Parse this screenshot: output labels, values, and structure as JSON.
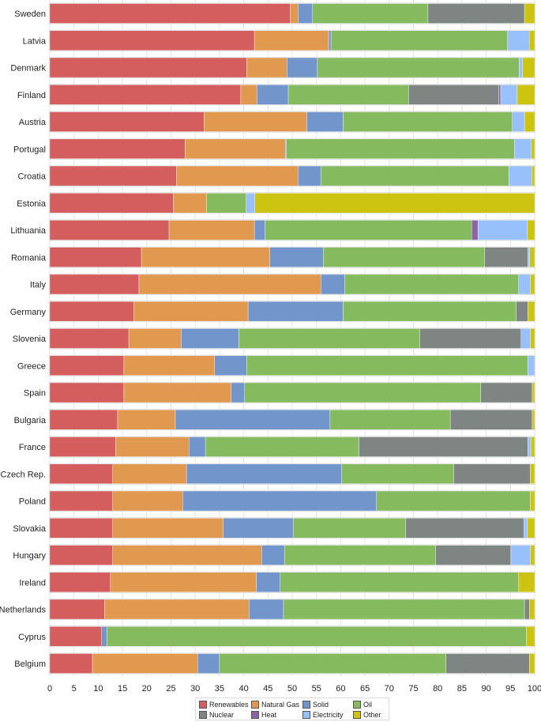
{
  "chart_data": {
    "type": "bar",
    "orientation": "horizontal",
    "stacked": true,
    "title": "",
    "xlabel": "",
    "ylabel": "",
    "xlim": [
      0,
      100
    ],
    "xticks": [
      "0",
      "5",
      "10",
      "15",
      "20",
      "25",
      "30",
      "35",
      "40",
      "45",
      "50",
      "55",
      "60",
      "65",
      "70",
      "75",
      "80",
      "85",
      "90",
      "95",
      "100"
    ],
    "grid": true,
    "legend_position": "bottom",
    "categories": [
      "Sweden",
      "Latvia",
      "Denmark",
      "Finland",
      "Austria",
      "Portugal",
      "Croatia",
      "Estonia",
      "Lithuania",
      "Romania",
      "Italy",
      "Germany",
      "Slovenia",
      "Greece",
      "Spain",
      "Bulgaria",
      "France",
      "Czech Rep.",
      "Poland",
      "Slovakia",
      "Hungary",
      "Ireland",
      "Netherlands",
      "Cyprus",
      "Belgium"
    ],
    "series": [
      {
        "name": "Renewables",
        "color": "#d45d5d",
        "values": [
          49.6,
          42.2,
          40.6,
          39.4,
          31.8,
          27.9,
          26.1,
          25.5,
          24.6,
          18.9,
          18.4,
          17.3,
          16.3,
          15.3,
          15.3,
          14.0,
          13.6,
          13.0,
          13.0,
          13.0,
          13.0,
          12.5,
          11.3,
          10.7,
          8.8
        ]
      },
      {
        "name": "Natural Gas",
        "color": "#e1984f",
        "values": [
          1.6,
          15.3,
          8.3,
          3.3,
          21.2,
          20.7,
          25.1,
          6.8,
          17.6,
          26.5,
          37.5,
          23.6,
          10.8,
          18.7,
          22.1,
          11.9,
          15.1,
          15.2,
          14.4,
          22.8,
          30.7,
          30.1,
          29.8,
          0,
          21.7
        ]
      },
      {
        "name": "Solid",
        "color": "#7295cb",
        "values": [
          3.0,
          0.5,
          6.3,
          6.5,
          7.5,
          0.2,
          4.7,
          0,
          2.2,
          11.0,
          4.9,
          19.6,
          11.9,
          6.6,
          2.8,
          31.9,
          3.4,
          32.0,
          40.0,
          14.4,
          4.7,
          4.9,
          7.1,
          1.1,
          4.5
        ]
      },
      {
        "name": "Oil",
        "color": "#86ba5e",
        "values": [
          23.8,
          36.4,
          41.6,
          24.8,
          34.9,
          47.0,
          38.8,
          8.2,
          42.6,
          33.3,
          35.9,
          35.7,
          37.3,
          58.0,
          48.7,
          24.8,
          31.7,
          23.1,
          31.7,
          23.2,
          31.2,
          49.2,
          49.7,
          86.5,
          46.7
        ]
      },
      {
        "name": "Nuclear",
        "color": "#7f8582",
        "values": [
          19.9,
          0,
          0,
          18.6,
          0,
          0,
          0,
          0,
          0,
          8.9,
          0,
          2.4,
          20.9,
          0,
          10.6,
          16.9,
          34.8,
          15.8,
          0,
          24.4,
          15.5,
          0,
          1.0,
          0,
          17.2
        ]
      },
      {
        "name": "Heat",
        "color": "#8e64a6",
        "values": [
          0,
          0,
          0,
          0.4,
          0,
          0,
          0,
          0,
          1.3,
          0,
          0,
          0,
          0,
          0,
          0,
          0,
          0,
          0,
          0,
          0,
          0,
          0,
          0,
          0,
          0
        ]
      },
      {
        "name": "Electricity",
        "color": "#98c0fb",
        "values": [
          0,
          4.5,
          0.7,
          3.4,
          2.5,
          3.5,
          4.7,
          1.8,
          10.2,
          0.4,
          2.4,
          0,
          1.9,
          1.4,
          0,
          0,
          0.6,
          0,
          0,
          0.7,
          4.0,
          0,
          0,
          0,
          0
        ]
      },
      {
        "name": "Other",
        "color": "#cdc412",
        "values": [
          2.1,
          1.1,
          2.5,
          3.6,
          2.1,
          0.7,
          0.6,
          57.7,
          1.5,
          1.0,
          0.9,
          1.4,
          0.9,
          0,
          0.5,
          0.5,
          0.8,
          0.9,
          0.9,
          1.5,
          0.9,
          3.3,
          1.1,
          1.7,
          1.1
        ]
      }
    ]
  }
}
